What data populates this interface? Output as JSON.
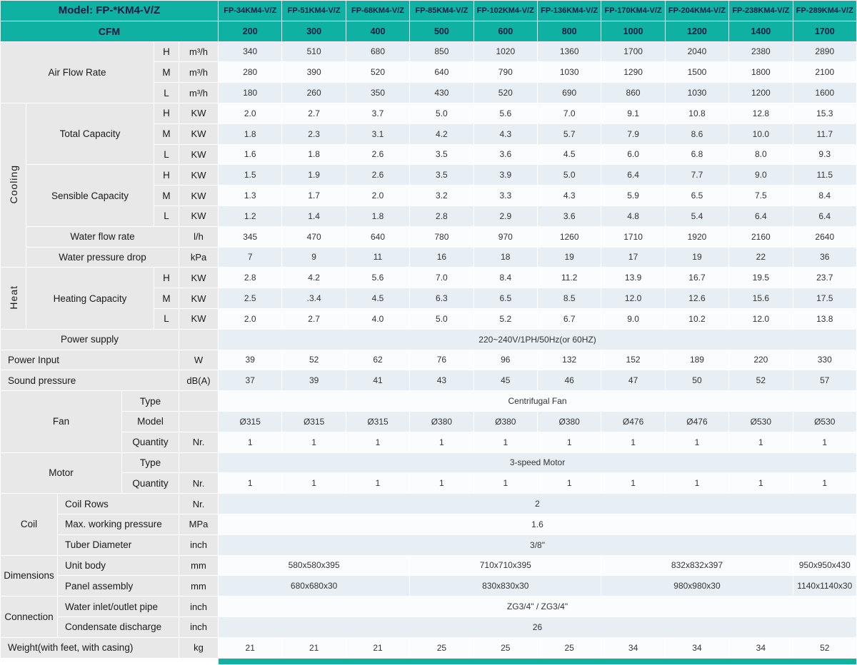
{
  "title": "Model: FP-*KM4-V/Z",
  "models": [
    "FP-34KM4-V/Z",
    "FP-51KM4-V/Z",
    "FP-68KM4-V/Z",
    "FP-85KM4-V/Z",
    "FP-102KM4-V/Z",
    "FP-136KM4-V/Z",
    "FP-170KM4-V/Z",
    "FP-204KM4-V/Z",
    "FP-238KM4-V/Z",
    "FP-289KM4-V/Z"
  ],
  "cfm": {
    "label": "CFM",
    "values": [
      "200",
      "300",
      "400",
      "500",
      "600",
      "800",
      "1000",
      "1200",
      "1400",
      "1700"
    ]
  },
  "speed_labels": {
    "H": "H",
    "M": "M",
    "L": "L"
  },
  "air_flow_rate": {
    "label": "Air Flow Rate",
    "unit": "m³/h",
    "H": [
      "340",
      "510",
      "680",
      "850",
      "1020",
      "1360",
      "1700",
      "2040",
      "2380",
      "2890"
    ],
    "M": [
      "280",
      "390",
      "520",
      "640",
      "790",
      "1030",
      "1290",
      "1500",
      "1800",
      "2100"
    ],
    "L": [
      "180",
      "260",
      "350",
      "430",
      "520",
      "690",
      "860",
      "1030",
      "1200",
      "1600"
    ]
  },
  "cooling": {
    "label": "Cooling",
    "total_capacity": {
      "label": "Total Capacity",
      "unit": "KW",
      "H": [
        "2.0",
        "2.7",
        "3.7",
        "5.0",
        "5.6",
        "7.0",
        "9.1",
        "10.8",
        "12.8",
        "15.3"
      ],
      "M": [
        "1.8",
        "2.3",
        "3.1",
        "4.2",
        "4.3",
        "5.7",
        "7.9",
        "8.6",
        "10.0",
        "11.7"
      ],
      "L": [
        "1.6",
        "1.8",
        "2.6",
        "3.5",
        "3.6",
        "4.5",
        "6.0",
        "6.8",
        "8.0",
        "9.3"
      ]
    },
    "sensible_capacity": {
      "label": "Sensible Capacity",
      "unit": "KW",
      "H": [
        "1.5",
        "1.9",
        "2.6",
        "3.5",
        "3.9",
        "5.0",
        "6.4",
        "7.7",
        "9.0",
        "11.5"
      ],
      "M": [
        "1.3",
        "1.7",
        "2.0",
        "3.2",
        "3.3",
        "4.3",
        "5.9",
        "6.5",
        "7.5",
        "8.4"
      ],
      "L": [
        "1.2",
        "1.4",
        "1.8",
        "2.8",
        "2.9",
        "3.6",
        "4.8",
        "5.4",
        "6.4",
        "6.4"
      ]
    },
    "water_flow_rate": {
      "label": "Water flow rate",
      "unit": "l/h",
      "values": [
        "345",
        "470",
        "640",
        "780",
        "970",
        "1260",
        "1710",
        "1920",
        "2160",
        "2640"
      ]
    },
    "water_pressure_drop": {
      "label": "Water pressure drop",
      "unit": "kPa",
      "values": [
        "7",
        "9",
        "11",
        "16",
        "18",
        "19",
        "17",
        "19",
        "22",
        "36"
      ]
    }
  },
  "heat": {
    "label": "Heat",
    "heating_capacity": {
      "label": "Heating Capacity",
      "unit": "KW",
      "H": [
        "2.8",
        "4.2",
        "5.6",
        "7.0",
        "8.4",
        "11.2",
        "13.9",
        "16.7",
        "19.5",
        "23.7"
      ],
      "M": [
        "2.5",
        ".3.4",
        "4.5",
        "6.3",
        "6.5",
        "8.5",
        "12.0",
        "12.6",
        "15.6",
        "17.5"
      ],
      "L": [
        "2.0",
        "2.7",
        "4.0",
        "5.0",
        "5.2",
        "6.7",
        "9.0",
        "10.2",
        "12.0",
        "13.8"
      ]
    }
  },
  "power_supply": {
    "label": "Power supply",
    "value": "220~240V/1PH/50Hz(or 60HZ)"
  },
  "power_input": {
    "label": "Power Input",
    "unit": "W",
    "values": [
      "39",
      "52",
      "62",
      "76",
      "96",
      "132",
      "152",
      "189",
      "220",
      "330"
    ]
  },
  "sound_pressure": {
    "label": "Sound pressure",
    "unit": "dB(A)",
    "values": [
      "37",
      "39",
      "41",
      "43",
      "45",
      "46",
      "47",
      "50",
      "52",
      "57"
    ]
  },
  "fan": {
    "label": "Fan",
    "type": {
      "label": "Type",
      "value": "Centrifugal Fan"
    },
    "model": {
      "label": "Model",
      "values": [
        "Ø315",
        "Ø315",
        "Ø315",
        "Ø380",
        "Ø380",
        "Ø380",
        "Ø476",
        "Ø476",
        "Ø530",
        "Ø530"
      ]
    },
    "quantity": {
      "label": "Quantity",
      "unit": "Nr.",
      "values": [
        "1",
        "1",
        "1",
        "1",
        "1",
        "1",
        "1",
        "1",
        "1",
        "1"
      ]
    }
  },
  "motor": {
    "label": "Motor",
    "type": {
      "label": "Type",
      "value": "3-speed Motor"
    },
    "quantity": {
      "label": "Quantity",
      "unit": "Nr.",
      "values": [
        "1",
        "1",
        "1",
        "1",
        "1",
        "1",
        "1",
        "1",
        "1",
        "1"
      ]
    }
  },
  "coil": {
    "label": "Coil",
    "coil_rows": {
      "label": "Coil Rows",
      "unit": "Nr.",
      "value": "2"
    },
    "max_working_pressure": {
      "label": "Max. working pressure",
      "unit": "MPa",
      "value": "1.6"
    },
    "tuber_diameter": {
      "label": "Tuber Diameter",
      "unit": "inch",
      "value": "3/8\""
    }
  },
  "dimensions": {
    "label": "Dimensions",
    "unit_body": {
      "label": "Unit body",
      "unit": "mm",
      "values": [
        "580x580x395",
        "710x710x395",
        "832x832x397",
        "950x950x430"
      ],
      "models_per_value": [
        3,
        3,
        3,
        1
      ]
    },
    "panel_assembly": {
      "label": "Panel assembly",
      "unit": "mm",
      "values": [
        "680x680x30",
        "830x830x30",
        "980x980x30",
        "1140x1140x30"
      ],
      "models_per_value": [
        3,
        3,
        3,
        1
      ]
    }
  },
  "connection": {
    "label": "Connection",
    "water_inlet_outlet_pipe": {
      "label": "Water inlet/outlet pipe",
      "unit": "inch",
      "value": "ZG3/4\" / ZG3/4\""
    },
    "condensate_discharge": {
      "label": "Condensate discharge",
      "unit": "inch",
      "value": "26"
    }
  },
  "weight": {
    "label": "Weight(with feet, with casing)",
    "unit": "kg",
    "values": [
      "21",
      "21",
      "21",
      "25",
      "25",
      "25",
      "34",
      "34",
      "34",
      "52"
    ]
  },
  "colors": {
    "teal": "#0FB2A2",
    "header_text": "#131A45",
    "label_bg": "#E8E8E8",
    "row_tint": "#E7EFF4",
    "row_plain": "#FBFCFD"
  }
}
